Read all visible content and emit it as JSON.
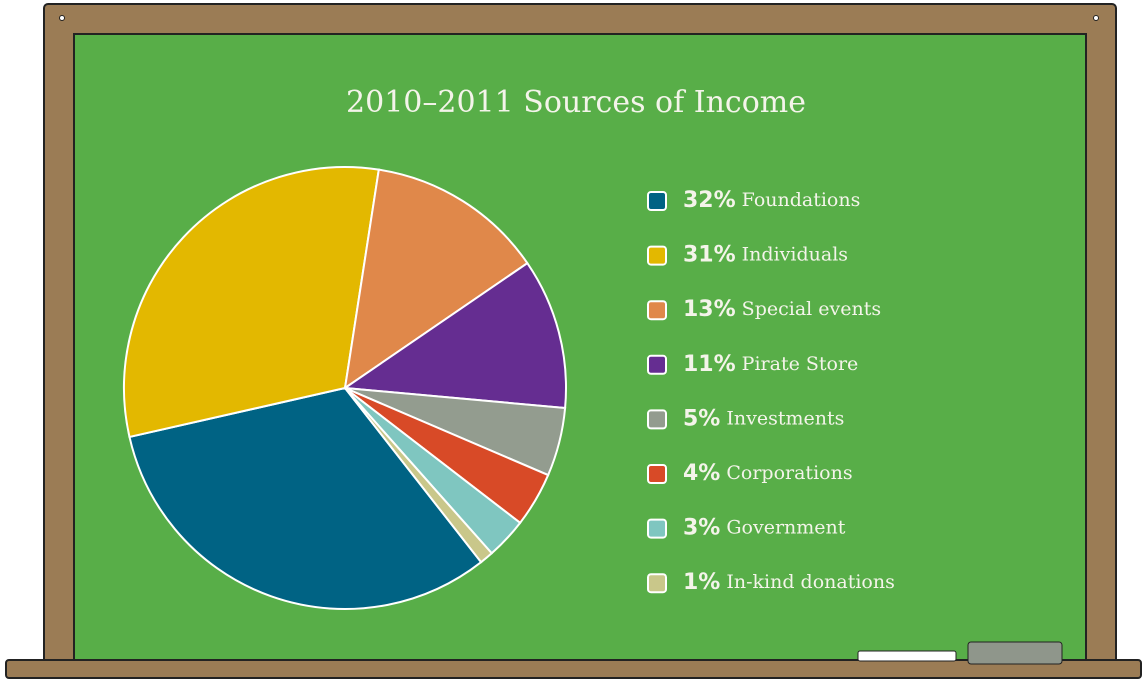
{
  "chart_data": {
    "type": "pie",
    "title": "2010–2011 Sources of Income",
    "categories": [
      "Foundations",
      "Individuals",
      "Special events",
      "Pirate Store",
      "Investments",
      "Corporations",
      "Government",
      "In-kind donations"
    ],
    "values": [
      32,
      31,
      13,
      11,
      5,
      4,
      3,
      1
    ],
    "value_labels": [
      "32%",
      "31%",
      "13%",
      "11%",
      "5%",
      "4%",
      "3%",
      "1%"
    ],
    "colors": [
      "#006384",
      "#e3b800",
      "#e0884a",
      "#652d91",
      "#939c8f",
      "#d84a27",
      "#7fc6c0",
      "#c9c78a"
    ]
  }
}
